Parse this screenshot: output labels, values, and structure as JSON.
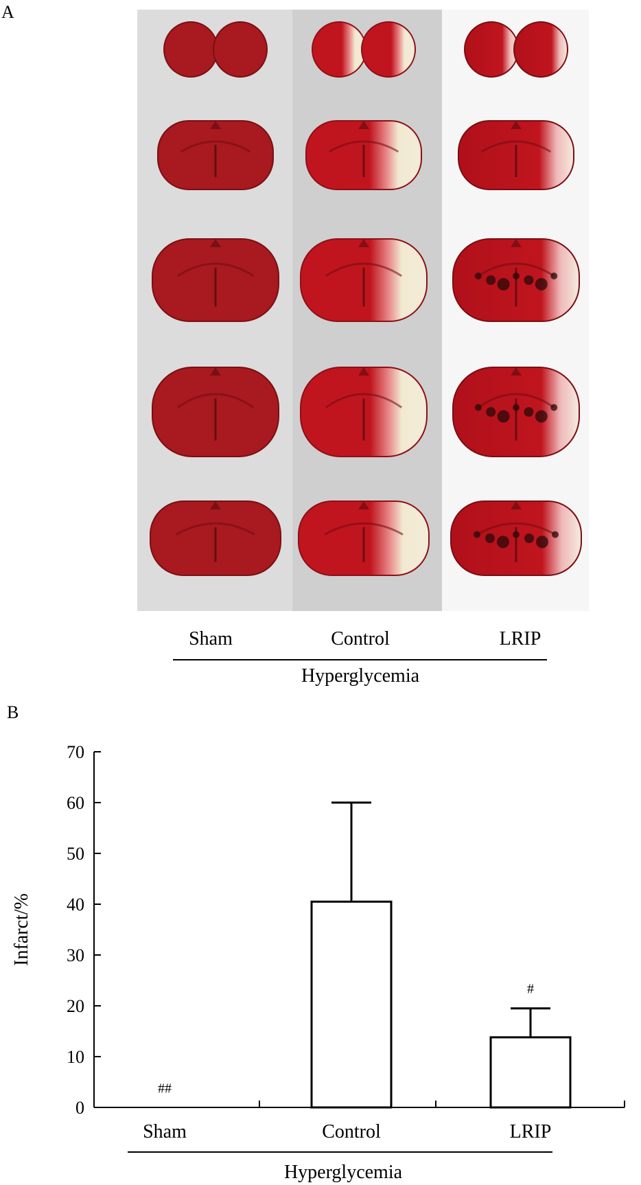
{
  "panel_a": {
    "label": "A",
    "columns": [
      "Sham",
      "Control",
      "LRIP"
    ],
    "group_label": "Hyperglycemia",
    "colors": {
      "tissue_stained": "#b3121b",
      "tissue_dark": "#7f0c12",
      "infarct_pale": "#f1e9d2",
      "background_gray": "#d9d9d9",
      "lrip_hemorrhage": "#2a0a0a"
    }
  },
  "panel_b": {
    "label": "B",
    "group_label": "Hyperglycemia"
  },
  "chart_data": {
    "type": "bar",
    "categories": [
      "Sham",
      "Control",
      "LRIP"
    ],
    "values": [
      0,
      40.5,
      13.8
    ],
    "errors": [
      0,
      19.5,
      5.7
    ],
    "annotations": [
      "##",
      "",
      "#"
    ],
    "title": "",
    "xlabel": "",
    "ylabel": "Infarct/%",
    "ylim": [
      0,
      70
    ],
    "yticks": [
      0,
      10,
      20,
      30,
      40,
      50,
      60,
      70
    ],
    "grid": false,
    "bar_fill": "#ffffff",
    "bar_stroke": "#000000"
  }
}
